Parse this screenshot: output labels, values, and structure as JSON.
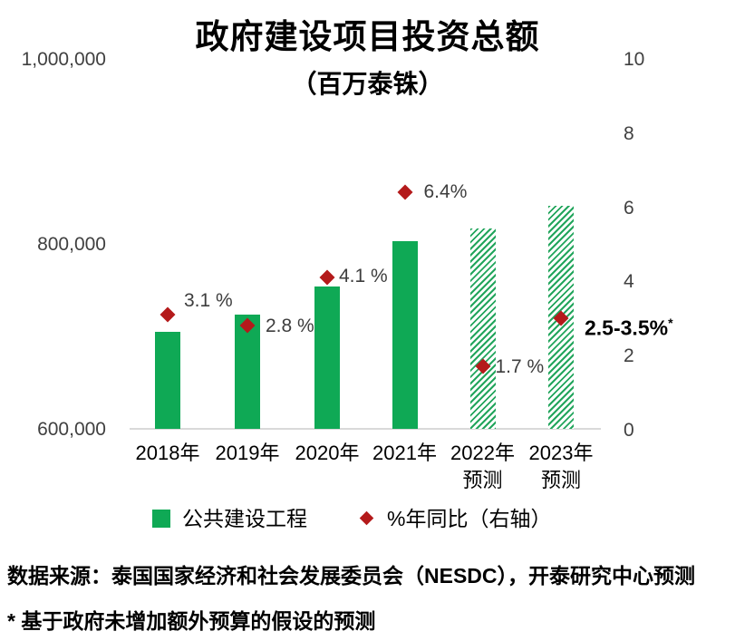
{
  "title": "政府建设项目投资总额",
  "subtitle": "（百万泰铢）",
  "axes": {
    "left_ticks": [
      {
        "label": "1,000,000",
        "value": 1000000
      },
      {
        "label": "800,000",
        "value": 800000
      },
      {
        "label": "600,000",
        "value": 600000
      }
    ],
    "right_ticks": [
      {
        "label": "10",
        "value": 10
      },
      {
        "label": "8",
        "value": 8
      },
      {
        "label": "6",
        "value": 6
      },
      {
        "label": "4",
        "value": 4
      },
      {
        "label": "2",
        "value": 2
      },
      {
        "label": "0",
        "value": 0
      }
    ]
  },
  "legend": [
    {
      "label": "公共建设工程",
      "marker": "square",
      "color": "#0fa955"
    },
    {
      "label": "%年同比（右轴）",
      "marker": "diamond",
      "color": "#b41a1b"
    }
  ],
  "source": "数据来源：泰国国家经济和社会发展委员会（NESDC），开泰研究中心预测",
  "footnote": "* 基于政府未增加额外预算的假设的预测",
  "colors": {
    "bar_green": "#0fa955",
    "hatch_green": "#22a55c",
    "marker_red": "#b41a1b",
    "axis_line": "#d9d9d9",
    "tick_text": "#404040"
  },
  "chart_data": {
    "type": "bar",
    "title": "政府建设项目投资总额",
    "subtitle": "（百万泰铢）",
    "categories": [
      "2018年",
      "2019年",
      "2020年",
      "2021年",
      "2022年",
      "2023年"
    ],
    "category_sublabels": [
      "",
      "",
      "",
      "",
      "预测",
      "预测"
    ],
    "left_axis_label": "百万泰铢",
    "left_ylim": [
      600000,
      1000000
    ],
    "right_ylim": [
      0,
      10
    ],
    "grid": false,
    "legend_position": "bottom",
    "series": [
      {
        "name": "公共建设工程",
        "type": "bar",
        "axis": "left",
        "unit": "百万泰铢",
        "values": [
          706000,
          725000,
          755000,
          804000,
          818000,
          842000
        ],
        "styles": [
          "solid",
          "solid",
          "solid",
          "solid",
          "hatched",
          "hatched"
        ]
      },
      {
        "name": "%年同比（右轴）",
        "type": "scatter",
        "axis": "right",
        "unit": "%",
        "values": [
          3.1,
          2.8,
          4.1,
          6.4,
          1.7,
          3.0
        ],
        "labels": [
          "3.1 %",
          "2.8 %",
          "4.1 %",
          "6.4%",
          "1.7 %",
          "2.5-3.5%*"
        ],
        "emphasis_index": 5
      }
    ]
  }
}
